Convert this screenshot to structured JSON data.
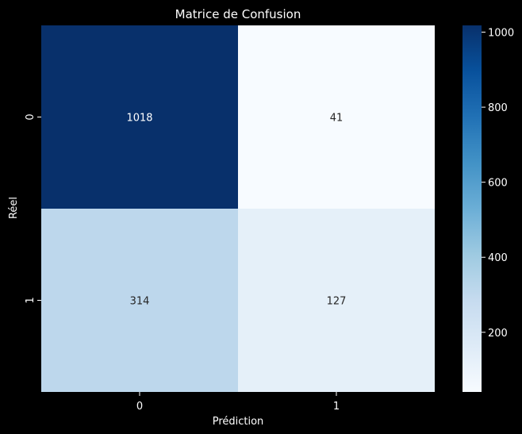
{
  "chart_data": {
    "type": "heatmap",
    "title": "Matrice de Confusion",
    "xlabel": "Prédiction",
    "ylabel": "Réel",
    "x_categories": [
      "0",
      "1"
    ],
    "y_categories": [
      "0",
      "1"
    ],
    "values": [
      [
        1018,
        41
      ],
      [
        314,
        127
      ]
    ],
    "colormap": "Blues",
    "color_range": [
      41,
      1018
    ],
    "colorbar_ticks": [
      200,
      400,
      600,
      800,
      1000
    ],
    "annotations_shown": true
  },
  "theme": {
    "background": "#000000",
    "text_color": "#ffffff",
    "annotation_dark_text": "#262626",
    "annotation_light_text": "#ffffff"
  }
}
